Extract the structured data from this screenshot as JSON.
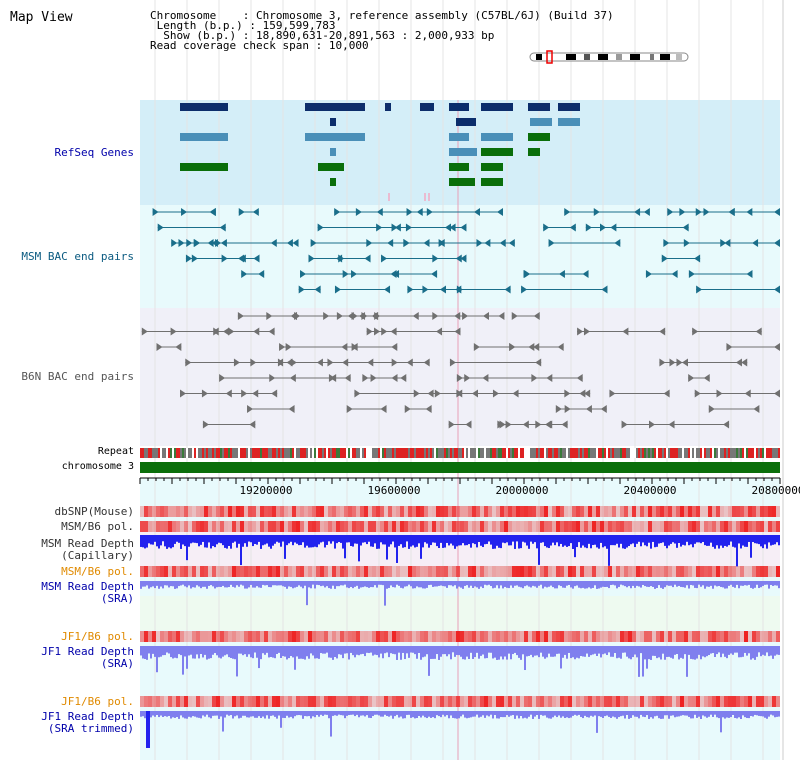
{
  "title": "Map View",
  "info": {
    "chromosome_label": "Chromosome",
    "chromosome_value": "Chromosome 3, reference assembly (C57BL/6J) (Build 37)",
    "length_label": "Length (b.p.)",
    "length_value": "159,599,783",
    "show_label": "Show (b.p.)",
    "show_value": "18,890,631-20,891,563 : 2,000,933 bp",
    "coverage_label": "Read coverage check span",
    "coverage_value": "10,000"
  },
  "tracks": {
    "refseq": "RefSeq Genes",
    "msm_bac": "MSM BAC end pairs",
    "b6n_bac": "B6N BAC end pairs",
    "repeat": "Repeat",
    "chromosome": "chromosome 3",
    "dbsnp": "dbSNP(Mouse)",
    "msm_b6_pol": "MSM/B6 pol.",
    "msm_depth_cap_1": "MSM Read Depth",
    "msm_depth_cap_2": "(Capillary)",
    "msm_b6_pol_2": "MSM/B6 pol.",
    "msm_depth_sra_1": "MSM Read Depth",
    "msm_depth_sra_2": "(SRA)",
    "jf1_b6_pol": "JF1/B6 pol.",
    "jf1_depth_sra_1": "JF1 Read Depth",
    "jf1_depth_sra_2": "(SRA)",
    "jf1_b6_pol_2": "JF1/B6 pol.",
    "jf1_depth_trim_1": "JF1 Read Depth",
    "jf1_depth_trim_2": "(SRA trimmed)"
  },
  "axis": {
    "ticks": [
      "19200000",
      "19600000",
      "20000000",
      "20400000",
      "20800000"
    ]
  },
  "colors": {
    "refseq_bg": "#d4eef8",
    "msm_bg": "#e8fafc",
    "b6n_bg": "#f0f0f8",
    "gene_dark": "#0c2d6b",
    "gene_mid": "#4a8fb8",
    "gene_green": "#0a6e0a",
    "msm_line": "#1a6e8a",
    "b6n_line": "#707070",
    "chrom_bar": "#0a6e0a",
    "depth_blue": "#2222ee",
    "depth_light": "#7f7fee",
    "pol_red": "#ee2222"
  }
}
